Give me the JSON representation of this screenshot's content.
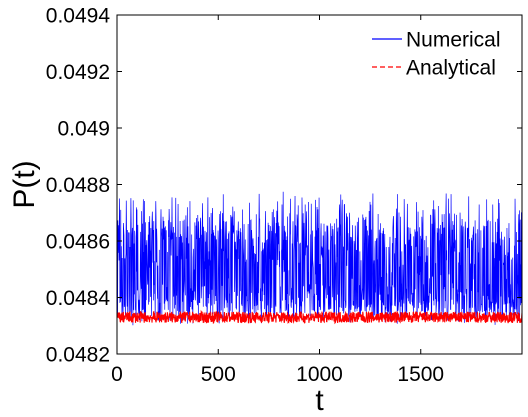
{
  "chart_data": {
    "type": "line",
    "title": "",
    "xlabel": "t",
    "ylabel": "P(t)",
    "xlim": [
      0,
      2000
    ],
    "ylim": [
      0.0482,
      0.0494
    ],
    "x_ticks": [
      0,
      500,
      1000,
      1500
    ],
    "x_tick_labels": [
      "0",
      "500",
      "1000",
      "1500"
    ],
    "y_ticks": [
      0.0482,
      0.0484,
      0.0486,
      0.0488,
      0.049,
      0.0492,
      0.0494
    ],
    "y_tick_labels": [
      "0.0482",
      "0.0484",
      "0.0486",
      "0.0488",
      "0.049",
      "0.0492",
      "0.0494"
    ],
    "grid": false,
    "legend_position": "top-right",
    "series": [
      {
        "name": "Numerical",
        "color": "#0000ff",
        "line_style": "solid",
        "mean": 0.04846,
        "min": 0.0483,
        "max": 0.04878,
        "description_values": "rapidly oscillating signal over t from 0 to 2000"
      },
      {
        "name": "Analytical",
        "color": "#ff0000",
        "line_style": "dashed",
        "mean": 0.04833,
        "min": 0.04831,
        "max": 0.04835,
        "description_values": "narrow oscillation band over t from 0 to 2000"
      }
    ]
  }
}
